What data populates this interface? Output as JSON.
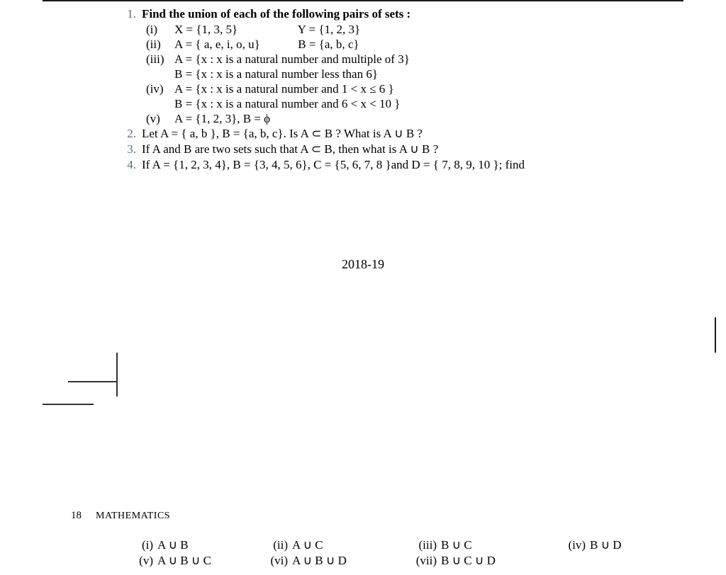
{
  "page1": {
    "q1": {
      "num": "1.",
      "text": "Find the union of each of the following pairs of sets :",
      "items": [
        {
          "num": "(i)",
          "a": "X = {1, 3, 5}",
          "b": "Y = {1, 2, 3}"
        },
        {
          "num": "(ii)",
          "a": "A = { a, e, i, o, u}",
          "b": "B = {a, b, c}"
        },
        {
          "num": "(iii)",
          "a": "A = {x : x is a natural number and multiple of 3}",
          "b": "B = {x : x is a natural number less than 6}"
        },
        {
          "num": "(iv)",
          "a": "A = {x : x is a natural number and 1 < x ≤ 6 }",
          "b": "B = {x : x is a natural number and 6 < x < 10 }"
        },
        {
          "num": "(v)",
          "a": "A = {1, 2, 3}, B = ϕ"
        }
      ]
    },
    "q2": {
      "num": "2.",
      "text": "Let A = { a, b }, B = {a, b, c}. Is A ⊂ B ? What is A ∪ B ?"
    },
    "q3": {
      "num": "3.",
      "text": "If A and B are two sets such that A ⊂ B, then what is A ∪ B ?"
    },
    "q4": {
      "num": "4.",
      "text": "If A = {1, 2, 3, 4}, B = {3, 4, 5, 6}, C = {5, 6, 7, 8 }and D = { 7, 8, 9, 10 }; find"
    },
    "year": "2018-19"
  },
  "page2": {
    "pagenum": "18",
    "chapter": "MATHEMATICS",
    "options": {
      "row1": [
        {
          "num": "(i)",
          "val": "A ∪ B"
        },
        {
          "num": "(ii)",
          "val": "A ∪ C"
        },
        {
          "num": "(iii)",
          "val": "B ∪ C"
        },
        {
          "num": "(iv)",
          "val": "B ∪ D"
        }
      ],
      "row2": [
        {
          "num": "(v)",
          "val": "A ∪ B ∪ C"
        },
        {
          "num": "(vi)",
          "val": "A ∪ B ∪ D"
        },
        {
          "num": "(vii)",
          "val": "B ∪ C ∪ D"
        }
      ]
    }
  },
  "colors": {
    "text": "#000000",
    "faded": "#5a6a80",
    "bg": "#ffffff",
    "rule": "#1a1a1a"
  }
}
